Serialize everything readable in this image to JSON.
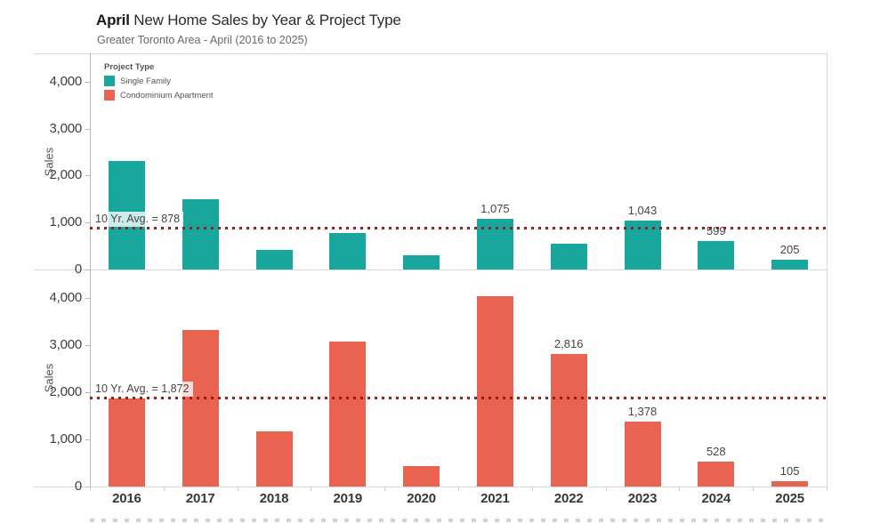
{
  "header": {
    "title_emphasis": "April",
    "title_rest": " New Home Sales by Year & Project Type",
    "subtitle": "Greater Toronto Area - April (2016 to 2025)"
  },
  "legend": {
    "title": "Project Type",
    "items": [
      {
        "label": "Single Family",
        "color": "#19A79D"
      },
      {
        "label": "Condominium Apartment",
        "color": "#EA6350"
      }
    ]
  },
  "chart_data": {
    "type": "bar",
    "title": "April New Home Sales by Year & Project Type",
    "subtitle": "Greater Toronto Area - April (2016 to 2025)",
    "categories": [
      "2016",
      "2017",
      "2018",
      "2019",
      "2020",
      "2021",
      "2022",
      "2023",
      "2024",
      "2025"
    ],
    "ylabel": "Sales",
    "ylim": [
      0,
      4600
    ],
    "yticks": [
      {
        "value": 0,
        "label": "0"
      },
      {
        "value": 1000,
        "label": "1,000"
      },
      {
        "value": 2000,
        "label": "2,000"
      },
      {
        "value": 3000,
        "label": "3,000"
      },
      {
        "value": 4000,
        "label": "4,000"
      }
    ],
    "grid": false,
    "legend_position": "inside-top-left",
    "panels": [
      {
        "series": "Single Family",
        "color": "#19A79D",
        "values": [
          2300,
          1500,
          420,
          780,
          310,
          1075,
          550,
          1043,
          599,
          205
        ],
        "bar_labels": [
          "",
          "",
          "",
          "",
          "",
          "1,075",
          "",
          "1,043",
          "599",
          "205"
        ],
        "reference_line": {
          "value": 878,
          "label": "10 Yr. Avg. = 878",
          "color": "#931E1C",
          "style": "dotted"
        }
      },
      {
        "series": "Condominium Apartment",
        "color": "#EA6350",
        "values": [
          1860,
          3320,
          1165,
          3075,
          430,
          4043,
          2816,
          1378,
          528,
          105
        ],
        "bar_labels": [
          "",
          "",
          "",
          "",
          "",
          "",
          "2,816",
          "1,378",
          "528",
          "105"
        ],
        "reference_line": {
          "value": 1872,
          "label": "10 Yr. Avg. = 1,872",
          "color": "#931E1C",
          "style": "dotted"
        }
      }
    ]
  }
}
